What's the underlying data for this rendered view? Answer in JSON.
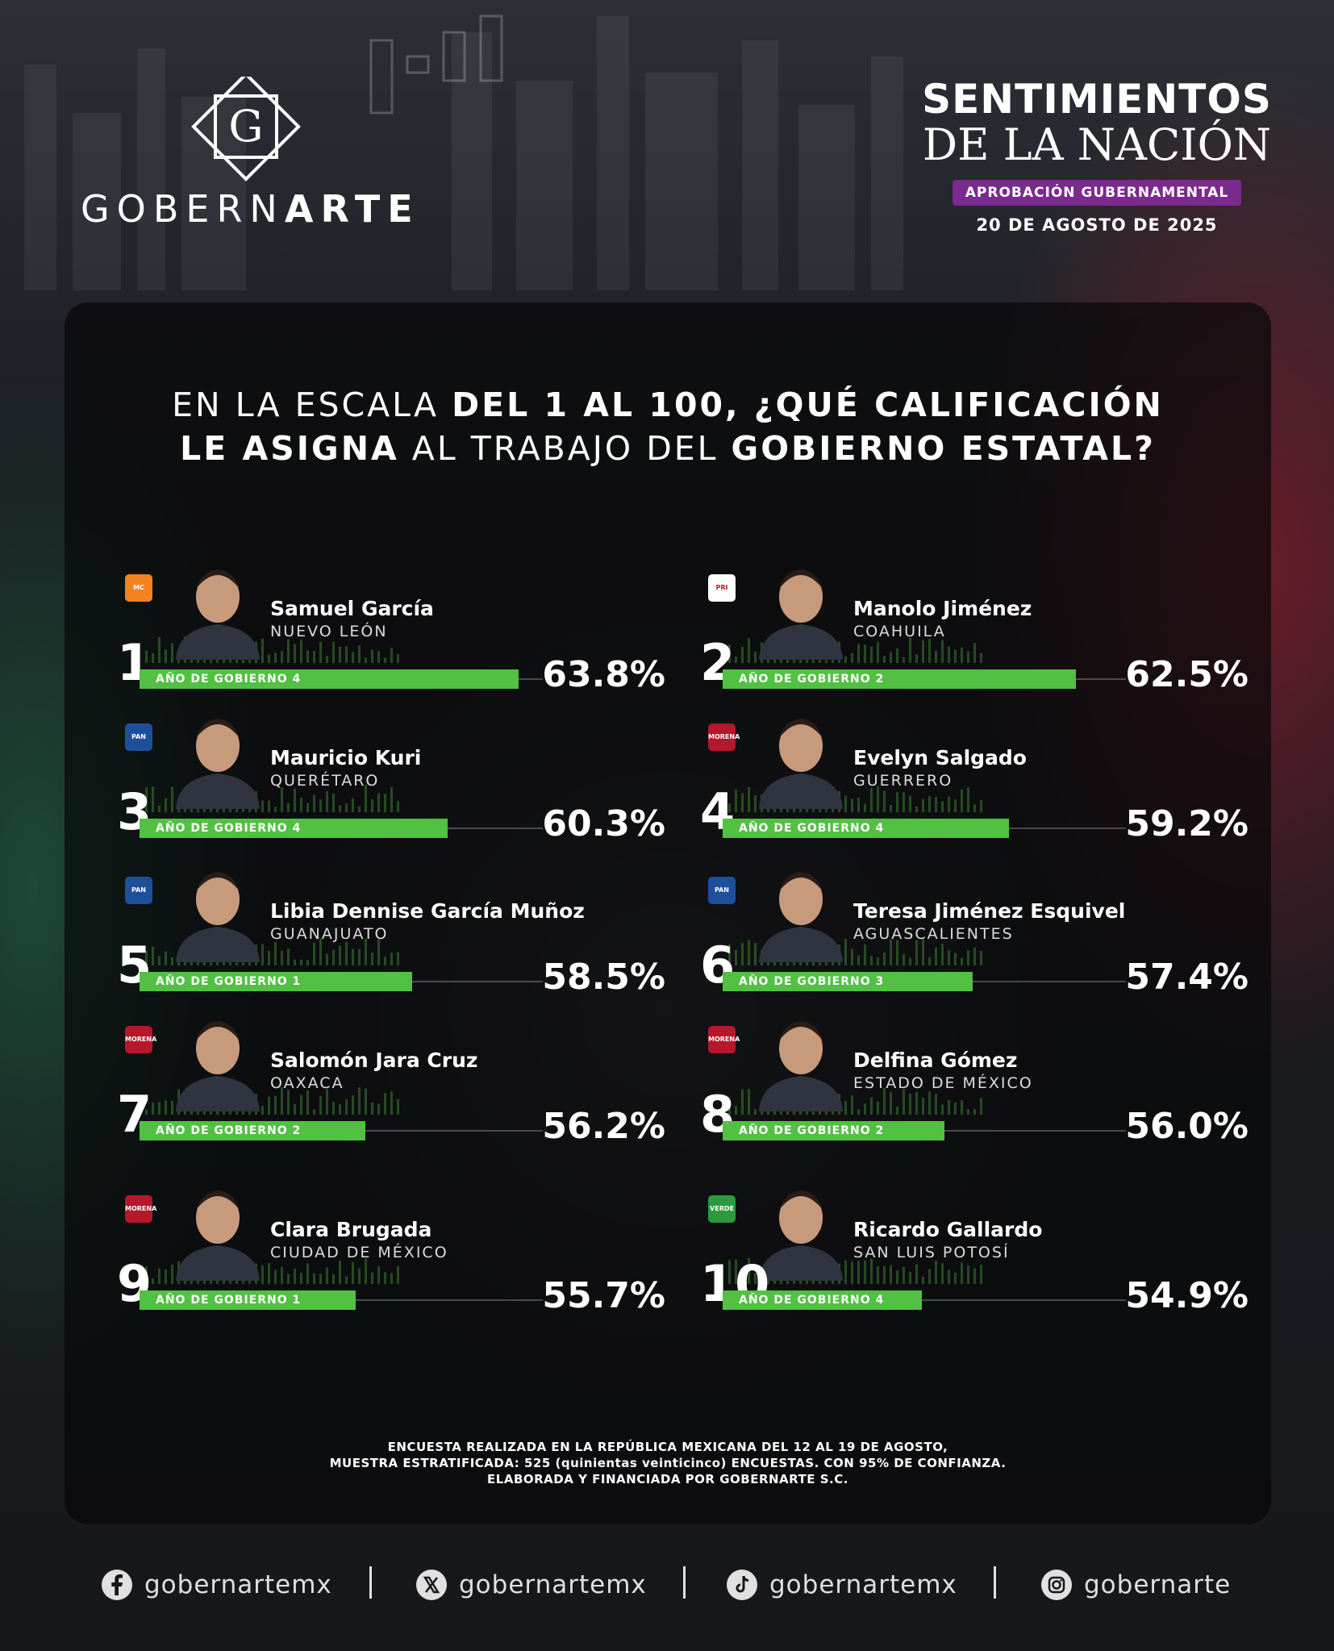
{
  "brand": {
    "logo_letter": "G",
    "name_part1": "GOBERN",
    "name_part2": "ARTE"
  },
  "header": {
    "title_line1": "SENTIMIENTOS",
    "title_line2": "DE LA NACIÓN",
    "subtitle": "APROBACIÓN GUBERNAMENTAL",
    "date": "20 DE AGOSTO DE 2025"
  },
  "question": {
    "l1a": "EN LA ESCALA ",
    "l1b": "DEL 1 AL 100, ¿QUÉ CALIFICACIÓN",
    "l2a": "LE ASIGNA",
    "l2b": " AL TRABAJO DEL ",
    "l2c": "GOBIERNO ESTATAL?"
  },
  "colors": {
    "bar": "#52c043",
    "pill": "#7b2a8e",
    "flag_green": "#1e6e46",
    "flag_red": "#aa1e32"
  },
  "chart_data": {
    "type": "bar",
    "title": "EN LA ESCALA DEL 1 AL 100, ¿QUÉ CALIFICACIÓN LE ASIGNA AL TRABAJO DEL GOBIERNO ESTATAL?",
    "unit": "%",
    "ylim": [
      0,
      100
    ],
    "categories": [
      "Samuel García",
      "Manolo Jiménez",
      "Mauricio Kuri",
      "Evelyn Salgado",
      "Libia Dennise García Muñoz",
      "Teresa Jiménez Esquivel",
      "Salomón Jara Cruz",
      "Delfina Gómez",
      "Clara Brugada",
      "Ricardo Gallardo"
    ],
    "values": [
      63.8,
      62.5,
      60.3,
      59.2,
      58.5,
      57.4,
      56.2,
      56.0,
      55.7,
      54.9
    ],
    "items": [
      {
        "rank": "1",
        "name": "Samuel García",
        "state": "NUEVO LEÓN",
        "year_label": "AÑO DE GOBIERNO",
        "year": "4",
        "value": 63.8,
        "value_label": "63.8%",
        "party": "MC",
        "party_color": "#f58220"
      },
      {
        "rank": "2",
        "name": "Manolo Jiménez",
        "state": "COAHUILA",
        "year_label": "AÑO DE GOBIERNO",
        "year": "2",
        "value": 62.5,
        "value_label": "62.5%",
        "party": "PRI",
        "party_color": "#ffffff"
      },
      {
        "rank": "3",
        "name": "Mauricio Kuri",
        "state": "QUERÉTARO",
        "year_label": "AÑO DE GOBIERNO",
        "year": "4",
        "value": 60.3,
        "value_label": "60.3%",
        "party": "PAN",
        "party_color": "#1d4f9c"
      },
      {
        "rank": "4",
        "name": "Evelyn Salgado",
        "state": "GUERRERO",
        "year_label": "AÑO DE GOBIERNO",
        "year": "4",
        "value": 59.2,
        "value_label": "59.2%",
        "party": "MORENA",
        "party_color": "#b5172b"
      },
      {
        "rank": "5",
        "name": "Libia Dennise García Muñoz",
        "state": "GUANAJUATO",
        "year_label": "AÑO DE GOBIERNO",
        "year": "1",
        "value": 58.5,
        "value_label": "58.5%",
        "party": "PAN",
        "party_color": "#1d4f9c"
      },
      {
        "rank": "6",
        "name": "Teresa Jiménez Esquivel",
        "state": "AGUASCALIENTES",
        "year_label": "AÑO DE GOBIERNO",
        "year": "3",
        "value": 57.4,
        "value_label": "57.4%",
        "party": "PAN",
        "party_color": "#1d4f9c"
      },
      {
        "rank": "7",
        "name": "Salomón Jara Cruz",
        "state": "OAXACA",
        "year_label": "AÑO DE GOBIERNO",
        "year": "2",
        "value": 56.2,
        "value_label": "56.2%",
        "party": "MORENA",
        "party_color": "#b5172b"
      },
      {
        "rank": "8",
        "name": "Delfina Gómez",
        "state": "ESTADO DE MÉXICO",
        "year_label": "AÑO DE GOBIERNO",
        "year": "2",
        "value": 56.0,
        "value_label": "56.0%",
        "party": "MORENA",
        "party_color": "#b5172b"
      },
      {
        "rank": "9",
        "name": "Clara Brugada",
        "state": "CIUDAD DE MÉXICO",
        "year_label": "AÑO DE GOBIERNO",
        "year": "1",
        "value": 55.7,
        "value_label": "55.7%",
        "party": "MORENA",
        "party_color": "#b5172b"
      },
      {
        "rank": "10",
        "name": "Ricardo Gallardo",
        "state": "SAN LUIS POTOSÍ",
        "year_label": "AÑO DE GOBIERNO",
        "year": "4",
        "value": 54.9,
        "value_label": "54.9%",
        "party": "VERDE",
        "party_color": "#2e9a3f"
      }
    ]
  },
  "methodology": {
    "line1": "ENCUESTA REALIZADA EN LA REPÚBLICA MEXICANA DEL 12 AL 19 DE AGOSTO,",
    "line2": "MUESTRA ESTRATIFICADA: 525 (quinientas veinticinco) ENCUESTAS. CON 95% DE CONFIANZA.",
    "line3": "ELABORADA Y FINANCIADA POR GOBERNARTE S.C."
  },
  "social": [
    {
      "icon": "facebook-icon",
      "handle": "gobernartemx"
    },
    {
      "icon": "x-icon",
      "handle": "gobernartemx"
    },
    {
      "icon": "tiktok-icon",
      "handle": "gobernartemx"
    },
    {
      "icon": "instagram-icon",
      "handle": "gobernarte"
    }
  ]
}
